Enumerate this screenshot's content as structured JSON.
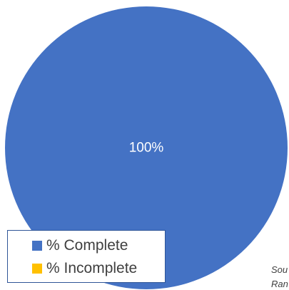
{
  "chart_data": {
    "type": "pie",
    "categories": [
      "% Complete",
      "% Incomplete"
    ],
    "values": [
      100,
      0
    ],
    "data_labels": [
      "100%",
      ""
    ],
    "colors": [
      "#4472c4",
      "#ffc000"
    ],
    "legend_position": "bottom-left",
    "title": ""
  },
  "source_note": {
    "line1": "Sou",
    "line2": "Ran"
  }
}
